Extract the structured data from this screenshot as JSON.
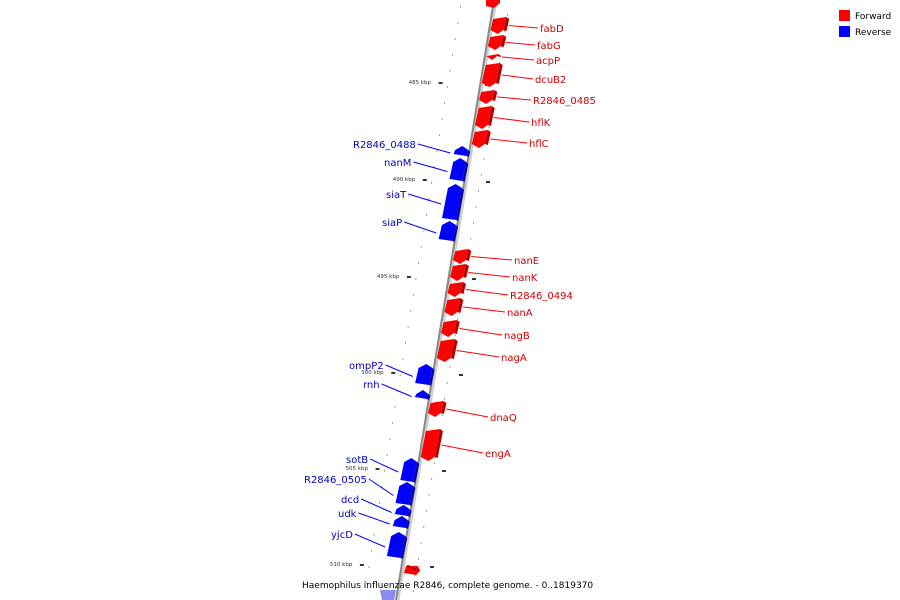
{
  "colors": {
    "forward": "#ff0000",
    "forward_dark": "#b00000",
    "reverse": "#0000ff",
    "reverse_dark": "#0000a0",
    "forward_label": "#cc0000",
    "reverse_label": "#0000bb",
    "axis": "#888888"
  },
  "legend": [
    {
      "label": "Forward",
      "strand": "forward"
    },
    {
      "label": "Reverse",
      "strand": "reverse"
    }
  ],
  "caption": "Haemophilus influenzae R2846, complete genome. - 0..1819370",
  "ruler": {
    "unit": "kbp",
    "major_ticks": [
      "485 kbp",
      "490 kbp",
      "495 kbp",
      "500 kbp",
      "505 kbp",
      "510 kbp"
    ]
  },
  "genes": [
    {
      "name": "fabD",
      "strand": "forward"
    },
    {
      "name": "fabG",
      "strand": "forward"
    },
    {
      "name": "acpP",
      "strand": "forward"
    },
    {
      "name": "dcuB2",
      "strand": "forward"
    },
    {
      "name": "R2846_0485",
      "strand": "forward"
    },
    {
      "name": "hflK",
      "strand": "forward"
    },
    {
      "name": "hflC",
      "strand": "forward"
    },
    {
      "name": "R2846_0488",
      "strand": "reverse"
    },
    {
      "name": "nanM",
      "strand": "reverse"
    },
    {
      "name": "siaT",
      "strand": "reverse"
    },
    {
      "name": "siaP",
      "strand": "reverse"
    },
    {
      "name": "nanE",
      "strand": "forward"
    },
    {
      "name": "nanK",
      "strand": "forward"
    },
    {
      "name": "R2846_0494",
      "strand": "forward"
    },
    {
      "name": "nanA",
      "strand": "forward"
    },
    {
      "name": "nagB",
      "strand": "forward"
    },
    {
      "name": "nagA",
      "strand": "forward"
    },
    {
      "name": "ompP2",
      "strand": "reverse"
    },
    {
      "name": "rnh",
      "strand": "reverse"
    },
    {
      "name": "dnaQ",
      "strand": "forward"
    },
    {
      "name": "engA",
      "strand": "forward"
    },
    {
      "name": "sotB",
      "strand": "reverse"
    },
    {
      "name": "R2846_0505",
      "strand": "reverse"
    },
    {
      "name": "dcd",
      "strand": "reverse"
    },
    {
      "name": "udk",
      "strand": "reverse"
    },
    {
      "name": "yjcD",
      "strand": "reverse"
    }
  ]
}
